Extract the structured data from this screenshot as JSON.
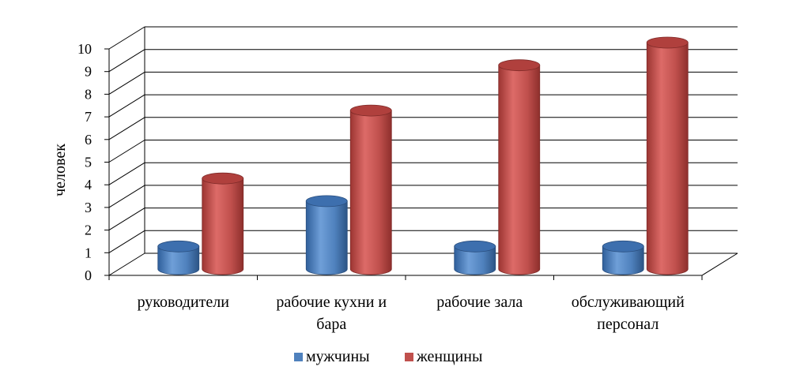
{
  "chart_data": {
    "type": "bar",
    "style": "3d-cylinder",
    "categories": [
      [
        "руководители"
      ],
      [
        "рабочие кухни  и",
        "бара"
      ],
      [
        "рабочие зала"
      ],
      [
        "обслуживающий",
        "персонал"
      ]
    ],
    "series": [
      {
        "name": "мужчины",
        "color": "#4F81BD",
        "values": [
          1,
          3,
          1,
          1
        ]
      },
      {
        "name": "женщины",
        "color": "#C0504D",
        "values": [
          4,
          7,
          9,
          10
        ]
      }
    ],
    "ylabel": "человек",
    "ylim": [
      0,
      10
    ],
    "yticks": [
      0,
      1,
      2,
      3,
      4,
      5,
      6,
      7,
      8,
      9,
      10
    ],
    "grid": true,
    "legend": "bottom"
  }
}
